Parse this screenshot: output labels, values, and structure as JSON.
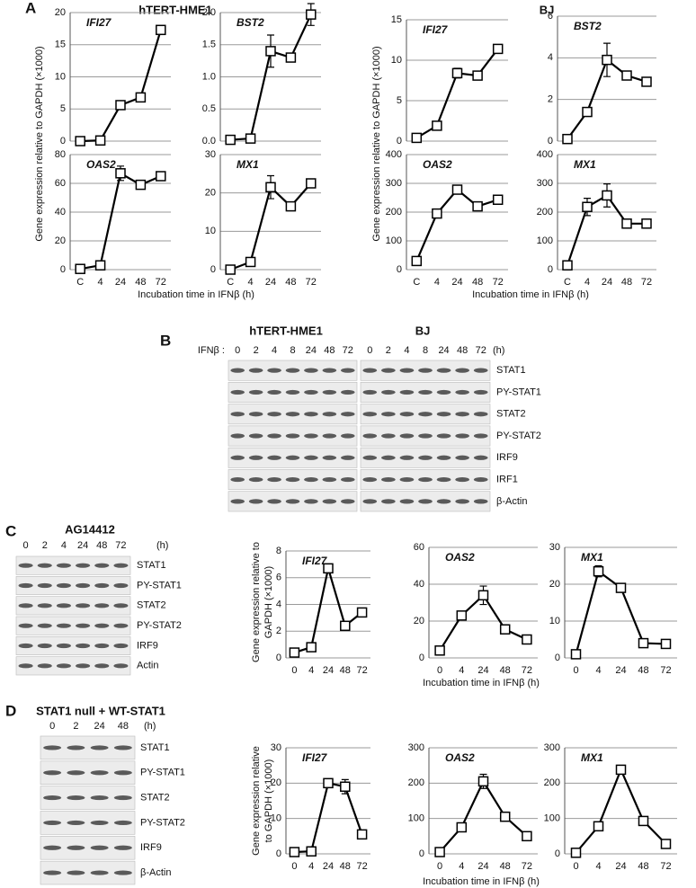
{
  "panels": {
    "A": {
      "label": "A",
      "cell_lines": [
        "hTERT-HME1",
        "BJ"
      ],
      "ylabels": [
        "Gene expression relative to GAPDH (×1000)",
        "Gene expression relative to GAPDH (×1000)"
      ],
      "xlabels": [
        "Incubation time in IFNβ (h)",
        "Incubation time in IFNβ (h)"
      ]
    },
    "B": {
      "label": "B",
      "treatment": "IFNβ :",
      "unit": "(h)",
      "groups": [
        {
          "title": "hTERT-HME1",
          "lanes": [
            "0",
            "2",
            "4",
            "8",
            "24",
            "48",
            "72"
          ]
        },
        {
          "title": "BJ",
          "lanes": [
            "0",
            "2",
            "4",
            "8",
            "24",
            "48",
            "72"
          ]
        }
      ],
      "rows": [
        "STAT1",
        "PY-STAT1",
        "STAT2",
        "PY-STAT2",
        "IRF9",
        "IRF1",
        "β-Actin"
      ]
    },
    "C": {
      "label": "C",
      "cell_line": "AG14412",
      "lanes": [
        "0",
        "2",
        "4",
        "24",
        "48",
        "72"
      ],
      "unit": "(h)",
      "rows": [
        "STAT1",
        "PY-STAT1",
        "STAT2",
        "PY-STAT2",
        "IRF9",
        "Actin"
      ],
      "ylabel": [
        "Gene expression relative to",
        "GAPDH (×1000)"
      ],
      "xlabel": "Incubation time in IFNβ (h)"
    },
    "D": {
      "label": "D",
      "cell_line": "STAT1 null + WT-STAT1",
      "lanes": [
        "0",
        "2",
        "24",
        "48"
      ],
      "unit": "(h)",
      "rows": [
        "STAT1",
        "PY-STAT1",
        "STAT2",
        "PY-STAT2",
        "IRF9",
        "β-Actin"
      ],
      "ylabel": [
        "Gene expression relative",
        "to GAPDH (×1000)"
      ],
      "xlabel": "Incubation time in IFNβ (h)"
    }
  },
  "chart_data": [
    {
      "type": "line",
      "title": "IFI27",
      "categories": [
        null,
        null,
        null,
        null,
        null
      ],
      "series": [
        {
          "color": "#000000",
          "values": [
            0,
            0.1,
            5.6,
            6.8,
            17.3
          ],
          "errors": [
            null,
            null,
            null,
            null,
            0.4
          ]
        }
      ],
      "ylim": [
        0,
        20
      ],
      "yticks": [
        0,
        5,
        10,
        15,
        20
      ],
      "grid": true
    },
    {
      "type": "line",
      "title": "BST2",
      "categories": [
        null,
        null,
        null,
        null,
        null
      ],
      "series": [
        {
          "color": "#000000",
          "values": [
            0.02,
            0.04,
            1.4,
            1.3,
            1.97
          ],
          "errors": [
            null,
            null,
            0.25,
            null,
            0.17
          ]
        }
      ],
      "ylim": [
        0,
        2
      ],
      "yticks": [
        {
          "value": 0,
          "label": "0.0"
        },
        {
          "value": 0.5,
          "label": "0.5"
        },
        {
          "value": 1,
          "label": "1.0"
        },
        {
          "value": 1.5,
          "label": "1.5"
        },
        {
          "value": 2,
          "label": "2.0"
        }
      ],
      "grid": true
    },
    {
      "type": "line",
      "title": "OAS2",
      "categories": [
        "C",
        "4",
        "24",
        "48",
        "72"
      ],
      "series": [
        {
          "color": "#000000",
          "values": [
            0.5,
            3,
            67,
            59,
            65
          ],
          "errors": [
            null,
            null,
            5,
            null,
            null
          ]
        }
      ],
      "ylim": [
        0,
        80
      ],
      "yticks": [
        0,
        20,
        40,
        60,
        80
      ],
      "grid": true
    },
    {
      "type": "line",
      "title": "MX1",
      "categories": [
        "C",
        "4",
        "24",
        "48",
        "72"
      ],
      "series": [
        {
          "color": "#000000",
          "values": [
            0,
            2,
            21.5,
            16.5,
            22.5
          ],
          "errors": [
            null,
            null,
            3,
            null,
            1
          ]
        }
      ],
      "ylim": [
        0,
        30
      ],
      "yticks": [
        0,
        10,
        20,
        30
      ],
      "grid": true
    },
    {
      "type": "line",
      "title": "IFI27",
      "categories": [
        null,
        null,
        null,
        null,
        null
      ],
      "series": [
        {
          "color": "#000000",
          "values": [
            0.4,
            1.9,
            8.4,
            8.1,
            11.4
          ],
          "errors": [
            null,
            null,
            0.6,
            null,
            null
          ]
        }
      ],
      "ylim": [
        0,
        15
      ],
      "yticks": [
        0,
        5,
        10,
        15
      ],
      "grid": true
    },
    {
      "type": "line",
      "title": "BST2",
      "categories": [
        null,
        null,
        null,
        null,
        null
      ],
      "series": [
        {
          "color": "#000000",
          "values": [
            0.1,
            1.4,
            3.9,
            3.15,
            2.85
          ],
          "errors": [
            null,
            null,
            0.8,
            null,
            null
          ]
        }
      ],
      "ylim": [
        0,
        6
      ],
      "yticks": [
        0,
        2,
        4,
        6
      ],
      "grid": true
    },
    {
      "type": "line",
      "title": "OAS2",
      "categories": [
        "C",
        "4",
        "24",
        "48",
        "72"
      ],
      "series": [
        {
          "color": "#000000",
          "values": [
            30,
            195,
            278,
            220,
            243
          ],
          "errors": [
            null,
            null,
            10,
            null,
            null
          ]
        }
      ],
      "ylim": [
        0,
        400
      ],
      "yticks": [
        0,
        100,
        200,
        300,
        400
      ],
      "grid": true
    },
    {
      "type": "line",
      "title": "MX1",
      "categories": [
        "C",
        "4",
        "24",
        "48",
        "72"
      ],
      "series": [
        {
          "color": "#000000",
          "values": [
            15,
            218,
            258,
            160,
            160
          ],
          "errors": [
            null,
            30,
            40,
            null,
            15
          ]
        }
      ],
      "ylim": [
        0,
        400
      ],
      "yticks": [
        0,
        100,
        200,
        300,
        400
      ],
      "grid": true
    },
    {
      "type": "line",
      "title": "IFI27",
      "categories": [
        "0",
        "4",
        "24",
        "48",
        "72"
      ],
      "series": [
        {
          "color": "#000000",
          "values": [
            0.4,
            0.8,
            6.7,
            2.4,
            3.4
          ],
          "errors": [
            null,
            null,
            null,
            null,
            null
          ]
        }
      ],
      "ylim": [
        0,
        8
      ],
      "yticks": [
        0,
        2,
        4,
        6,
        8
      ],
      "grid": true
    },
    {
      "type": "line",
      "title": "OAS2",
      "categories": [
        "0",
        "4",
        "24",
        "48",
        "72"
      ],
      "series": [
        {
          "color": "#000000",
          "values": [
            4,
            23,
            34,
            15.5,
            10
          ],
          "errors": [
            null,
            null,
            5,
            null,
            null
          ]
        }
      ],
      "ylim": [
        0,
        60
      ],
      "yticks": [
        0,
        20,
        40,
        60
      ],
      "grid": true
    },
    {
      "type": "line",
      "title": "MX1",
      "categories": [
        "0",
        "4",
        "24",
        "48",
        "72"
      ],
      "series": [
        {
          "color": "#000000",
          "values": [
            1,
            23.5,
            19,
            4,
            3.8
          ],
          "errors": [
            null,
            1.5,
            null,
            null,
            null
          ]
        }
      ],
      "ylim": [
        0,
        30
      ],
      "yticks": [
        0,
        10,
        20,
        30
      ],
      "grid": true
    },
    {
      "type": "line",
      "title": "IFI27",
      "categories": [
        "0",
        "4",
        "24",
        "48",
        "72"
      ],
      "series": [
        {
          "color": "#000000",
          "values": [
            0.5,
            0.7,
            20,
            19,
            5.5
          ],
          "errors": [
            null,
            null,
            null,
            2,
            null
          ]
        }
      ],
      "ylim": [
        0,
        30
      ],
      "yticks": [
        0,
        10,
        20,
        30
      ],
      "grid": true
    },
    {
      "type": "line",
      "title": "OAS2",
      "categories": [
        "0",
        "4",
        "24",
        "48",
        "72"
      ],
      "series": [
        {
          "color": "#000000",
          "values": [
            5,
            75,
            205,
            105,
            50
          ],
          "errors": [
            null,
            null,
            20,
            null,
            null
          ]
        }
      ],
      "ylim": [
        0,
        300
      ],
      "yticks": [
        0,
        100,
        200,
        300
      ],
      "grid": true
    },
    {
      "type": "line",
      "title": "MX1",
      "categories": [
        "0",
        "4",
        "24",
        "48",
        "72"
      ],
      "series": [
        {
          "color": "#000000",
          "values": [
            3,
            78,
            238,
            93,
            28
          ],
          "errors": [
            null,
            null,
            null,
            null,
            null
          ]
        }
      ],
      "ylim": [
        0,
        300
      ],
      "yticks": [
        0,
        100,
        200,
        300
      ],
      "grid": true
    }
  ]
}
